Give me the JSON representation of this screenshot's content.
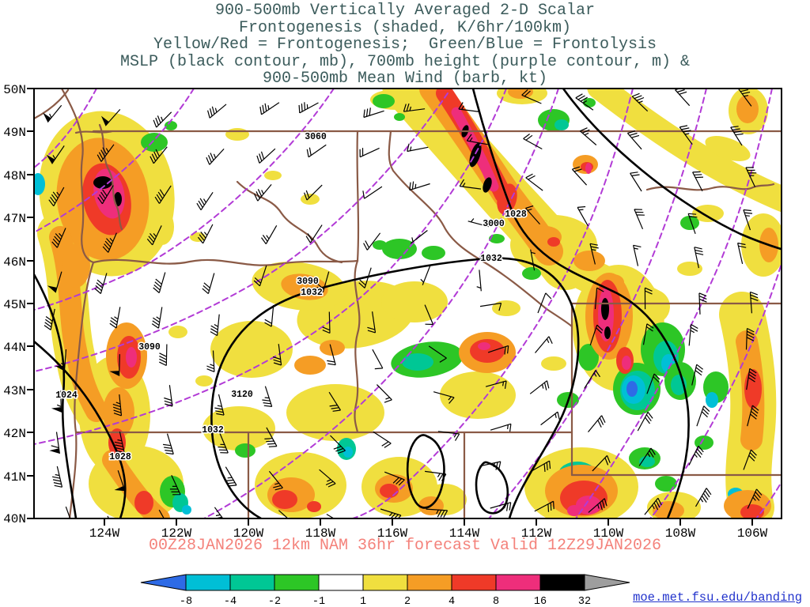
{
  "title": {
    "line1": "900-500mb Vertically Averaged 2-D Scalar",
    "line2": "Frontogenesis (shaded, K/6hr/100km)",
    "line3": "Yellow/Red = Frontogenesis;  Green/Blue = Frontolysis",
    "line4": "MSLP (black contour, mb), 700mb height (purple contour, m) &",
    "line5": "900-500mb Mean Wind (barb, kt)"
  },
  "axes": {
    "lat_labels": [
      "50N",
      "49N",
      "48N",
      "47N",
      "46N",
      "45N",
      "44N",
      "43N",
      "42N",
      "41N",
      "40N"
    ],
    "lon_labels": [
      "124W",
      "122W",
      "120W",
      "118W",
      "116W",
      "114W",
      "112W",
      "110W",
      "108W",
      "106W"
    ]
  },
  "map_labels": [
    "3060",
    "1028",
    "3000",
    "1032",
    "3090",
    "1032",
    "3090",
    "1024",
    "3120",
    "1032",
    "1028"
  ],
  "caption": "00Z28JAN2026 12km NAM 36hr forecast Valid 12Z29JAN2026",
  "link": "moe.met.fsu.edu/banding",
  "colorbar": {
    "ticks": [
      "-8",
      "-4",
      "-2",
      "-1",
      "1",
      "2",
      "4",
      "8",
      "16",
      "32"
    ]
  },
  "colors": {
    "title-text": "#3B5B5B",
    "caption-text": "#F4827B",
    "link-text": "#2233CC",
    "border-state": "#8A5A46",
    "contour-mslp": "#000000",
    "contour-height": "#B23BD6",
    "shade-yellow": "#F0DF3F",
    "shade-orange": "#F59D25",
    "shade-red": "#EF3A28",
    "shade-magenta": "#EE2E7B",
    "shade-black": "#000000",
    "shade-green": "#2DC626",
    "shade-teal": "#00C795",
    "shade-cyan": "#00BFD6",
    "shade-blue": "#2E6BE6",
    "cb-arrow-low": "#2E6BE6",
    "cb-arrow-high": "#9E9E9E"
  }
}
